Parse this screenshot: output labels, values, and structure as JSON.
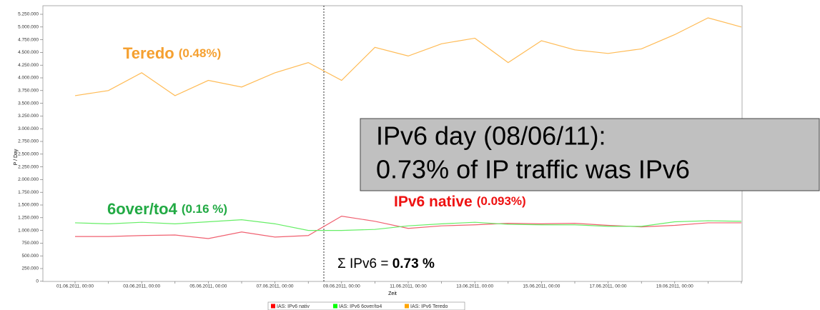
{
  "chart_data": {
    "type": "line",
    "y_label": "P / Day",
    "x_label": "Zeit",
    "categories": [
      "01.06.2011, 00:00",
      null,
      "03.06.2011, 00:00",
      null,
      "05.06.2011, 00:00",
      null,
      "07.06.2011, 00:00",
      null,
      "09.06.2011, 00:00",
      null,
      "11.06.2011, 00:00",
      null,
      "13.06.2011, 00:00",
      null,
      "15.06.2011, 00:00",
      null,
      "17.06.2011, 00:00",
      null,
      "19.06.2011, 00:00",
      null,
      null
    ],
    "series": [
      {
        "name": "IAS: IPv6 nativ",
        "color": "#f06070",
        "values": [
          880000,
          880000,
          900000,
          910000,
          840000,
          970000,
          870000,
          900000,
          1280000,
          1180000,
          1040000,
          1090000,
          1110000,
          1140000,
          1130000,
          1140000,
          1100000,
          1070000,
          1100000,
          1150000,
          1150000
        ]
      },
      {
        "name": "IAS: IPv6 6over/to4",
        "color": "#66ee66",
        "values": [
          1150000,
          1130000,
          1160000,
          1130000,
          1170000,
          1210000,
          1130000,
          1000000,
          1000000,
          1020000,
          1090000,
          1130000,
          1160000,
          1120000,
          1110000,
          1110000,
          1080000,
          1080000,
          1170000,
          1190000,
          1180000
        ]
      },
      {
        "name": "IAS: IPv6 Teredo",
        "color": "#ffbb55",
        "values": [
          3650000,
          3750000,
          4100000,
          3650000,
          3950000,
          3820000,
          4100000,
          4300000,
          3950000,
          4600000,
          4430000,
          4670000,
          4780000,
          4300000,
          4730000,
          4550000,
          4480000,
          4570000,
          4850000,
          5180000,
          5000000
        ]
      }
    ],
    "legend_colors": [
      "#ff0000",
      "#00ff00",
      "#ffa500"
    ],
    "ylim": [
      0,
      5250000
    ],
    "yticks": [
      0,
      {
        "value": 250000,
        "label": "250.000"
      },
      {
        "value": 500000,
        "label": "500.000"
      },
      {
        "value": 750000,
        "label": "750.000"
      },
      {
        "value": 1000000,
        "label": "1.000.000"
      },
      {
        "value": 1250000,
        "label": "1.250.000"
      },
      {
        "value": 1500000,
        "label": "1.500.000"
      },
      {
        "value": 1750000,
        "label": "1.750.000"
      },
      {
        "value": 2000000,
        "label": "2.000.000"
      },
      {
        "value": 2250000,
        "label": "2.250.000"
      },
      {
        "value": 2500000,
        "label": "2.500.000"
      },
      {
        "value": 2750000,
        "label": "2.750.000"
      },
      {
        "value": 3000000,
        "label": "3.000.000"
      },
      {
        "value": 3250000,
        "label": "3.250.000"
      },
      {
        "value": 3500000,
        "label": "3.500.000"
      },
      {
        "value": 3750000,
        "label": "3.750.000"
      },
      {
        "value": 4000000,
        "label": "4.000.000"
      },
      {
        "value": 4250000,
        "label": "4.250.000"
      },
      {
        "value": 4500000,
        "label": "4.500.000"
      },
      {
        "value": 4750000,
        "label": "4.750.000"
      },
      {
        "value": 5000000,
        "label": "5.000.000"
      },
      {
        "value": 5250000,
        "label": "5.250.000"
      }
    ],
    "annotations": {
      "teredo": "Teredo",
      "teredo_share": "(0.48%)",
      "sixover": "6over/to4",
      "sixover_share": "(0.16 %)",
      "native": "IPv6 native",
      "native_share": "(0.093%)",
      "sum": "Σ IPv6 = ",
      "sum_value": "0.73 %",
      "box_line1": "IPv6 day (08/06/11):",
      "box_line2": "0.73% of IP traffic was IPv6"
    }
  }
}
